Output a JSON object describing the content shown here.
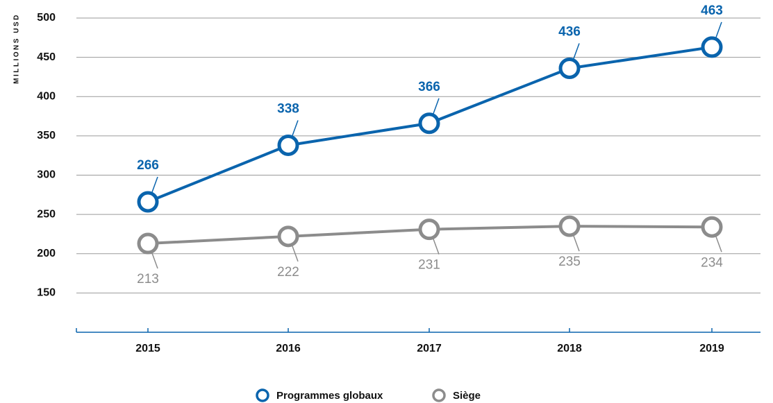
{
  "chart_data": {
    "type": "line",
    "y_label": "MILLIONS USD",
    "categories": [
      "2015",
      "2016",
      "2017",
      "2018",
      "2019"
    ],
    "series": [
      {
        "name": "Programmes globaux",
        "color": "#0a64ad",
        "values": [
          266,
          338,
          366,
          436,
          463
        ],
        "label_side": "above"
      },
      {
        "name": "Siège",
        "color": "#8c8c8c",
        "values": [
          213,
          222,
          231,
          235,
          234
        ],
        "label_side": "below"
      }
    ],
    "ylim": [
      100,
      500
    ],
    "yticks": [
      150,
      200,
      250,
      300,
      350,
      400,
      450,
      500
    ],
    "grid": true,
    "legend": "bottom"
  }
}
